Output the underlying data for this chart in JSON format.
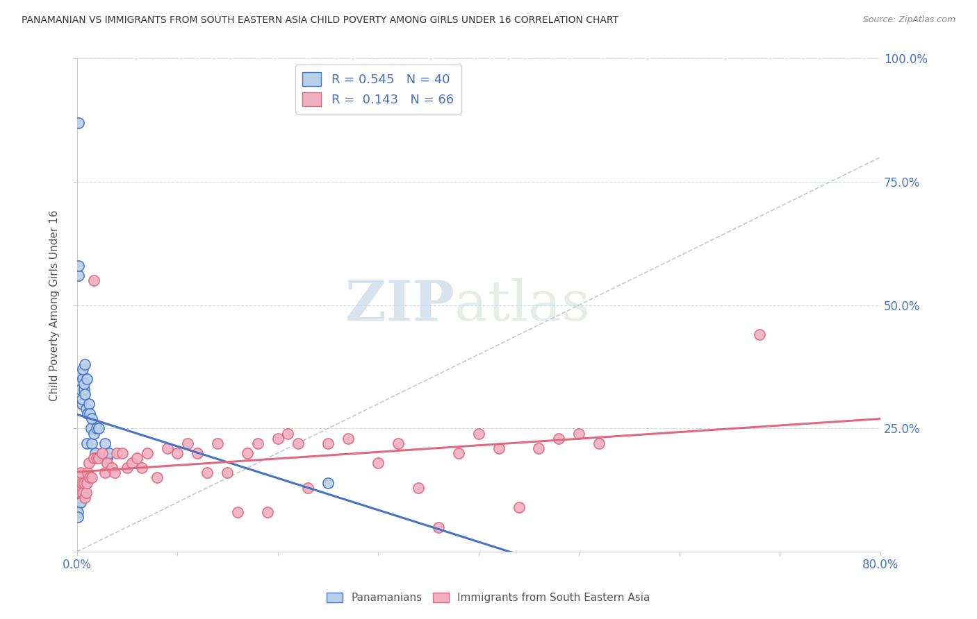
{
  "title": "PANAMANIAN VS IMMIGRANTS FROM SOUTH EASTERN ASIA CHILD POVERTY AMONG GIRLS UNDER 16 CORRELATION CHART",
  "source": "Source: ZipAtlas.com",
  "ylabel": "Child Poverty Among Girls Under 16",
  "xlim": [
    0,
    0.8
  ],
  "ylim": [
    0,
    1.0
  ],
  "blue_R": 0.545,
  "blue_N": 40,
  "pink_R": 0.143,
  "pink_N": 66,
  "blue_color": "#b8d0ea",
  "pink_color": "#f0b0c0",
  "blue_line_color": "#4472c4",
  "pink_line_color": "#e06880",
  "ref_line_color": "#c0c8d8",
  "legend_label_blue": "Panamanians",
  "legend_label_pink": "Immigrants from South Eastern Asia",
  "watermark_zip": "ZIP",
  "watermark_atlas": "atlas",
  "blue_points_x": [
    0.001,
    0.001,
    0.002,
    0.002,
    0.002,
    0.003,
    0.003,
    0.003,
    0.004,
    0.004,
    0.004,
    0.005,
    0.005,
    0.006,
    0.006,
    0.007,
    0.007,
    0.008,
    0.008,
    0.009,
    0.01,
    0.01,
    0.011,
    0.012,
    0.013,
    0.014,
    0.015,
    0.015,
    0.017,
    0.018,
    0.02,
    0.022,
    0.025,
    0.028,
    0.03,
    0.032,
    0.001,
    0.001,
    0.002,
    0.25
  ],
  "blue_points_y": [
    0.14,
    0.13,
    0.56,
    0.58,
    0.1,
    0.11,
    0.12,
    0.13,
    0.36,
    0.33,
    0.1,
    0.3,
    0.31,
    0.35,
    0.37,
    0.33,
    0.34,
    0.32,
    0.38,
    0.29,
    0.35,
    0.22,
    0.28,
    0.3,
    0.28,
    0.25,
    0.27,
    0.22,
    0.24,
    0.2,
    0.25,
    0.25,
    0.2,
    0.22,
    0.19,
    0.2,
    0.08,
    0.07,
    0.87,
    0.14
  ],
  "pink_points_x": [
    0.001,
    0.001,
    0.002,
    0.002,
    0.003,
    0.003,
    0.004,
    0.004,
    0.005,
    0.005,
    0.006,
    0.007,
    0.008,
    0.009,
    0.01,
    0.011,
    0.012,
    0.013,
    0.015,
    0.017,
    0.02,
    0.022,
    0.025,
    0.028,
    0.03,
    0.035,
    0.038,
    0.04,
    0.045,
    0.05,
    0.055,
    0.06,
    0.065,
    0.07,
    0.08,
    0.09,
    0.1,
    0.11,
    0.12,
    0.13,
    0.14,
    0.15,
    0.16,
    0.17,
    0.18,
    0.19,
    0.2,
    0.21,
    0.22,
    0.23,
    0.25,
    0.27,
    0.3,
    0.32,
    0.34,
    0.36,
    0.38,
    0.4,
    0.42,
    0.44,
    0.46,
    0.48,
    0.5,
    0.52,
    0.68,
    0.017
  ],
  "pink_points_y": [
    0.13,
    0.14,
    0.12,
    0.15,
    0.13,
    0.12,
    0.16,
    0.12,
    0.13,
    0.14,
    0.12,
    0.14,
    0.11,
    0.12,
    0.14,
    0.16,
    0.18,
    0.15,
    0.15,
    0.19,
    0.19,
    0.19,
    0.2,
    0.16,
    0.18,
    0.17,
    0.16,
    0.2,
    0.2,
    0.17,
    0.18,
    0.19,
    0.17,
    0.2,
    0.15,
    0.21,
    0.2,
    0.22,
    0.2,
    0.16,
    0.22,
    0.16,
    0.08,
    0.2,
    0.22,
    0.08,
    0.23,
    0.24,
    0.22,
    0.13,
    0.22,
    0.23,
    0.18,
    0.22,
    0.13,
    0.05,
    0.2,
    0.24,
    0.21,
    0.09,
    0.21,
    0.23,
    0.24,
    0.22,
    0.44,
    0.55
  ]
}
